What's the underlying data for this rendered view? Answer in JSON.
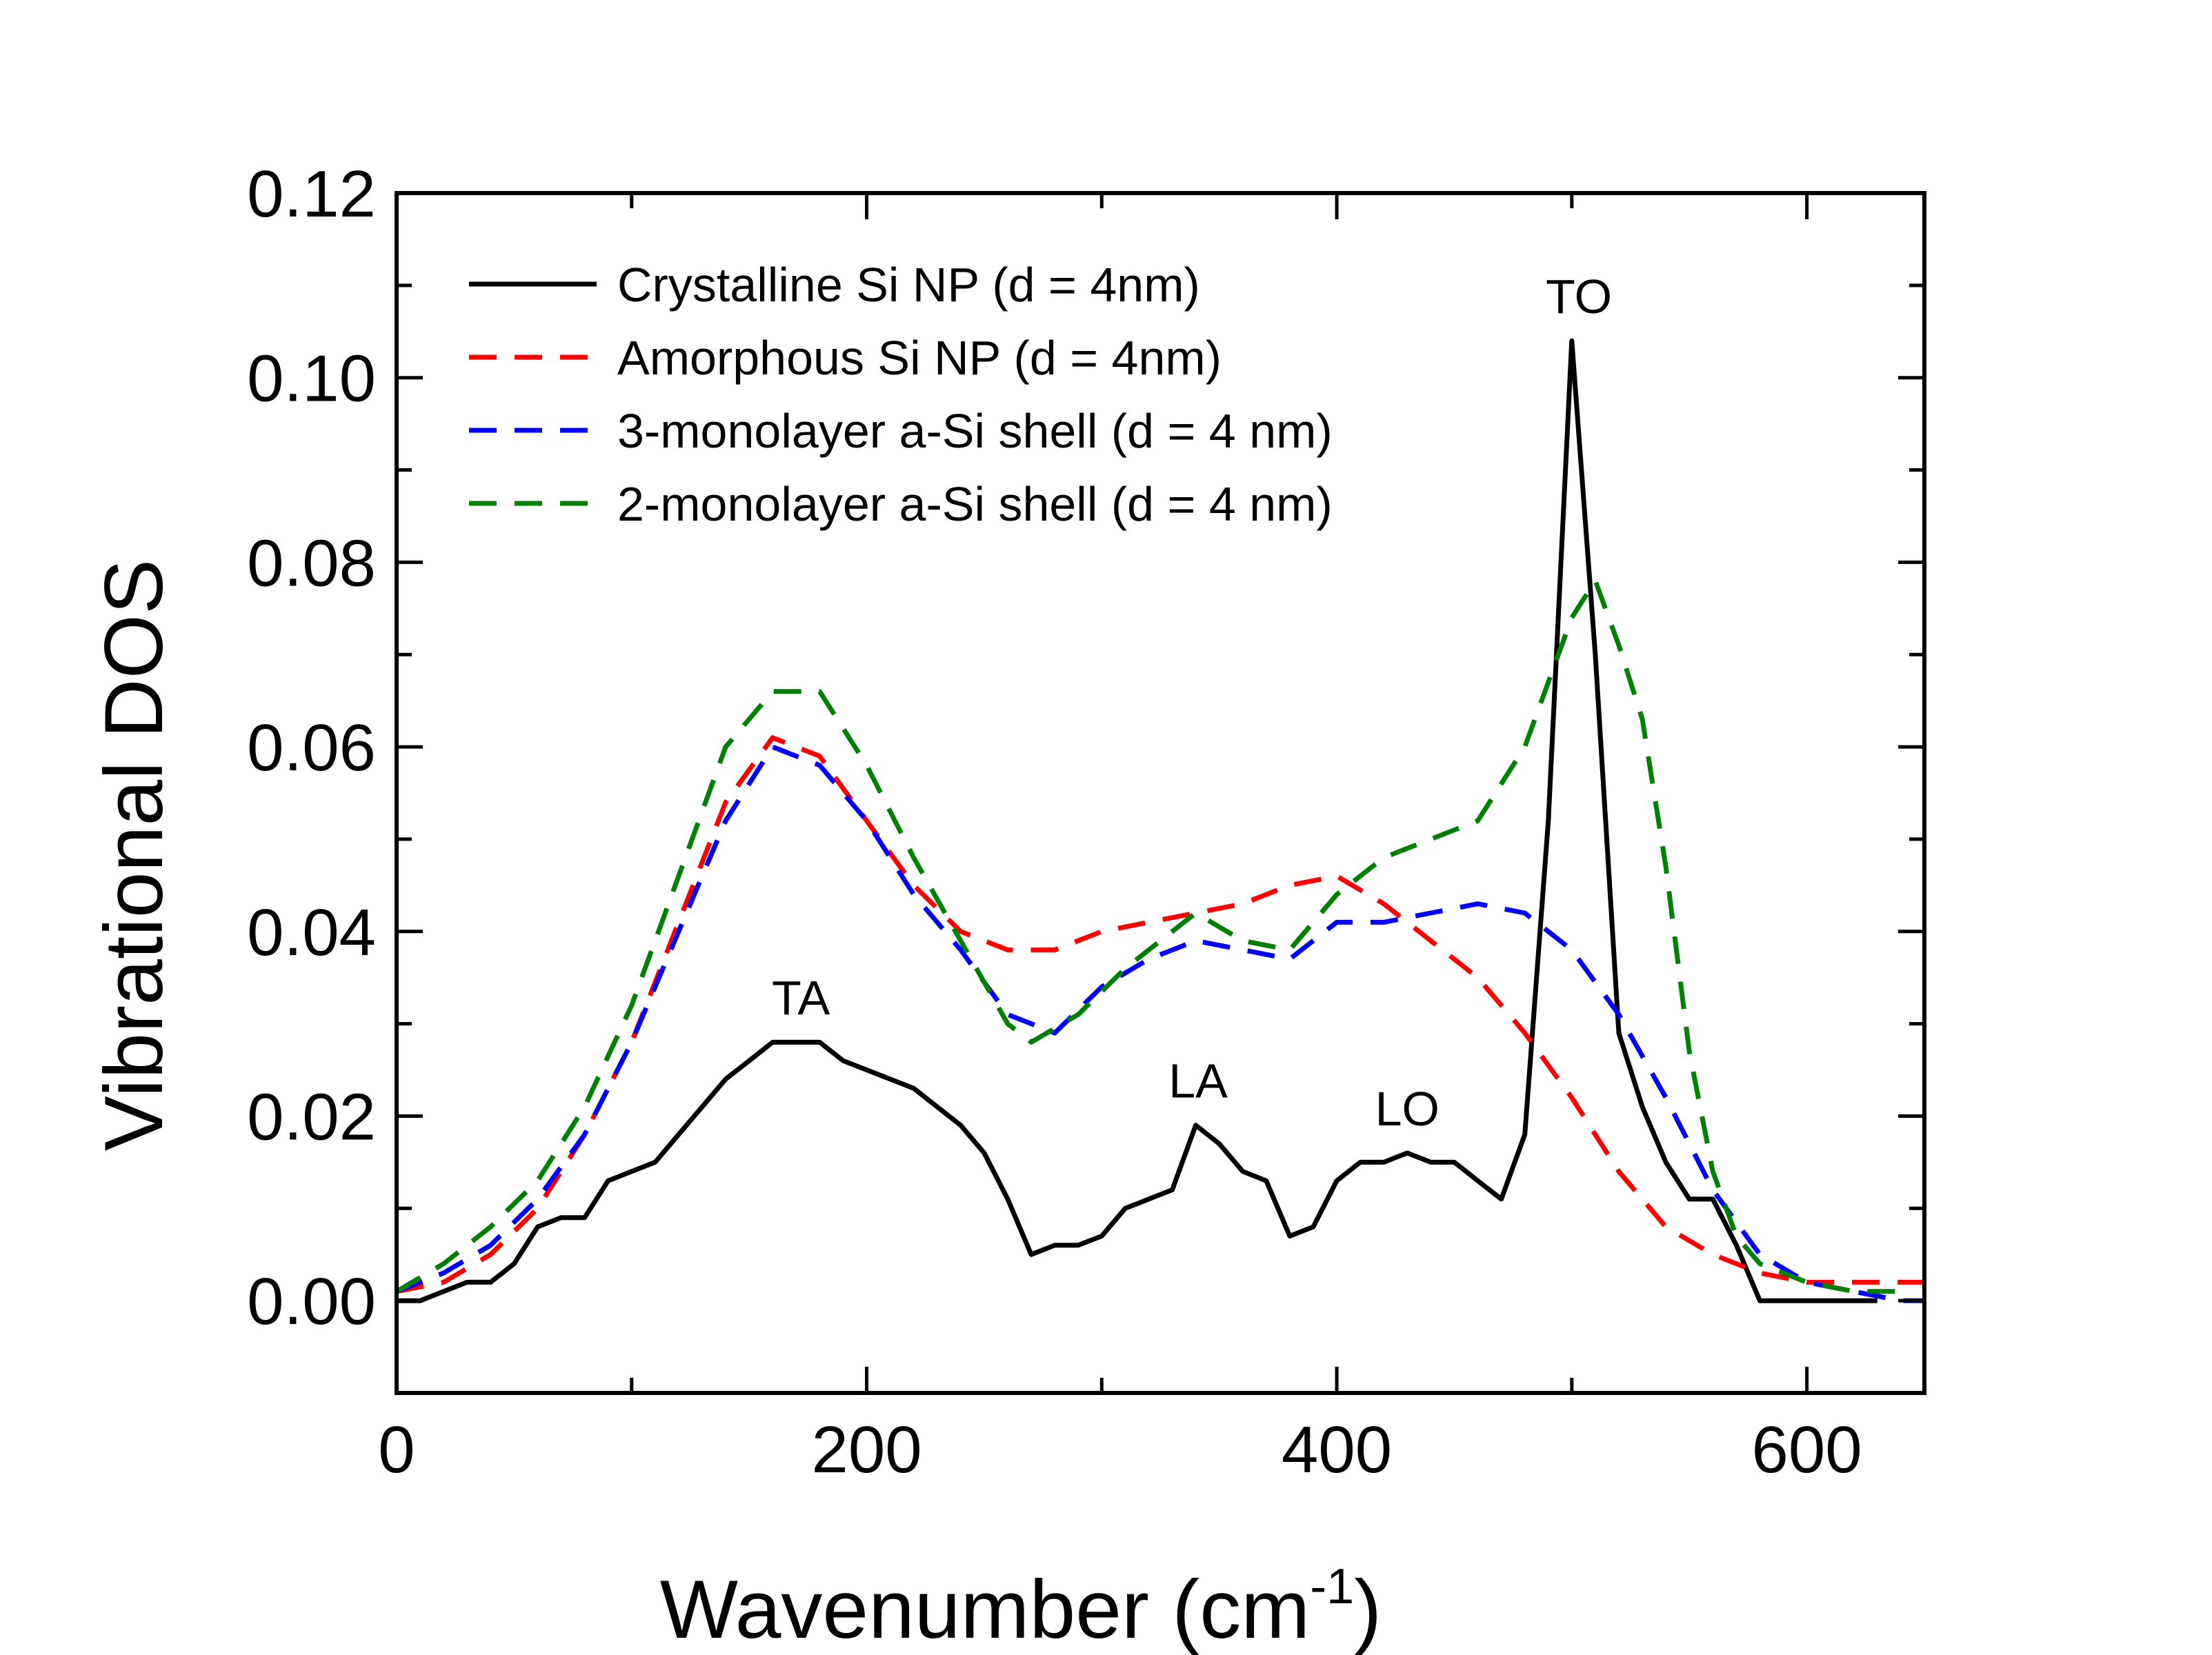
{
  "chart_data": {
    "type": "line",
    "title": "",
    "xlabel": "Wavenumber (cm",
    "xlabel_sup": "-1",
    "xlabel_end": ")",
    "ylabel": "Vibrational DOS",
    "xlim": [
      0,
      650
    ],
    "ylim": [
      -0.01,
      0.12
    ],
    "xticks": [
      0,
      200,
      400,
      600
    ],
    "xtick_labels": [
      "0",
      "200",
      "400",
      "600"
    ],
    "yticks": [
      0.0,
      0.02,
      0.04,
      0.06,
      0.08,
      0.1,
      0.12
    ],
    "ytick_labels": [
      "0.00",
      "0.02",
      "0.04",
      "0.06",
      "0.08",
      "0.10",
      "0.12"
    ],
    "grid": false,
    "legend_position": "top-left",
    "series": [
      {
        "name": "Crystalline Si NP (d = 4nm)",
        "color": "#000000",
        "dash": "solid",
        "x": [
          0,
          10,
          20,
          30,
          40,
          50,
          60,
          70,
          80,
          90,
          100,
          110,
          120,
          130,
          140,
          150,
          160,
          170,
          180,
          190,
          200,
          210,
          220,
          230,
          240,
          250,
          260,
          270,
          280,
          290,
          300,
          310,
          320,
          330,
          340,
          350,
          360,
          370,
          380,
          390,
          400,
          410,
          420,
          430,
          440,
          450,
          460,
          470,
          480,
          490,
          500,
          510,
          520,
          530,
          540,
          550,
          560,
          570,
          580,
          590,
          600,
          610,
          620,
          630
        ],
        "y": [
          0.0,
          0.0,
          0.001,
          0.002,
          0.002,
          0.004,
          0.008,
          0.009,
          0.009,
          0.013,
          0.014,
          0.015,
          0.018,
          0.021,
          0.024,
          0.026,
          0.028,
          0.028,
          0.028,
          0.026,
          0.025,
          0.024,
          0.023,
          0.021,
          0.019,
          0.016,
          0.011,
          0.005,
          0.006,
          0.006,
          0.007,
          0.01,
          0.011,
          0.012,
          0.019,
          0.017,
          0.014,
          0.013,
          0.007,
          0.008,
          0.013,
          0.015,
          0.015,
          0.016,
          0.015,
          0.015,
          0.013,
          0.011,
          0.018,
          0.052,
          0.104,
          0.07,
          0.029,
          0.021,
          0.015,
          0.011,
          0.011,
          0.006,
          0.0,
          0.0,
          0.0,
          0.0,
          0.0,
          0.0
        ]
      },
      {
        "name": "Amorphous Si NP (d = 4nm)",
        "color": "#ff0000",
        "dash": "dashed",
        "x": [
          0,
          20,
          40,
          60,
          80,
          100,
          120,
          140,
          160,
          180,
          200,
          220,
          240,
          260,
          280,
          300,
          320,
          340,
          360,
          380,
          400,
          420,
          440,
          460,
          480,
          500,
          520,
          540,
          560,
          580,
          600,
          620,
          640,
          650
        ],
        "y": [
          0.001,
          0.002,
          0.005,
          0.01,
          0.018,
          0.028,
          0.041,
          0.054,
          0.061,
          0.059,
          0.052,
          0.045,
          0.04,
          0.038,
          0.038,
          0.04,
          0.041,
          0.042,
          0.043,
          0.045,
          0.046,
          0.043,
          0.039,
          0.035,
          0.029,
          0.022,
          0.014,
          0.008,
          0.005,
          0.003,
          0.002,
          0.002,
          0.002,
          0.002
        ]
      },
      {
        "name": "3-monolayer a-Si shell (d = 4 nm)",
        "color": "#0000ff",
        "dash": "dashed",
        "x": [
          0,
          20,
          40,
          60,
          80,
          100,
          120,
          140,
          160,
          180,
          200,
          220,
          240,
          260,
          280,
          300,
          320,
          340,
          360,
          380,
          400,
          420,
          440,
          460,
          480,
          500,
          520,
          540,
          560,
          580,
          600,
          620,
          640,
          650
        ],
        "y": [
          0.001,
          0.003,
          0.006,
          0.011,
          0.018,
          0.028,
          0.04,
          0.052,
          0.06,
          0.058,
          0.052,
          0.044,
          0.038,
          0.031,
          0.029,
          0.034,
          0.037,
          0.039,
          0.038,
          0.037,
          0.041,
          0.041,
          0.042,
          0.043,
          0.042,
          0.038,
          0.031,
          0.022,
          0.012,
          0.005,
          0.002,
          0.001,
          0.0,
          0.0
        ]
      },
      {
        "name": "2-monolayer a-Si shell (d = 4 nm)",
        "color": "#008000",
        "dash": "dashed",
        "x": [
          0,
          20,
          40,
          60,
          80,
          100,
          120,
          140,
          160,
          180,
          200,
          220,
          240,
          260,
          270,
          290,
          310,
          330,
          340,
          360,
          380,
          400,
          420,
          440,
          460,
          480,
          500,
          510,
          520,
          530,
          540,
          550,
          560,
          570,
          580,
          600,
          620,
          640
        ],
        "y": [
          0.001,
          0.004,
          0.008,
          0.013,
          0.021,
          0.032,
          0.046,
          0.06,
          0.066,
          0.066,
          0.058,
          0.048,
          0.039,
          0.03,
          0.028,
          0.031,
          0.036,
          0.04,
          0.042,
          0.039,
          0.038,
          0.044,
          0.048,
          0.05,
          0.052,
          0.06,
          0.074,
          0.078,
          0.071,
          0.063,
          0.047,
          0.027,
          0.014,
          0.007,
          0.004,
          0.002,
          0.001,
          0.001
        ]
      }
    ],
    "annotations": [
      {
        "text": "TA",
        "x": 172,
        "y": 0.031
      },
      {
        "text": "LA",
        "x": 341,
        "y": 0.022
      },
      {
        "text": "LO",
        "x": 430,
        "y": 0.019
      },
      {
        "text": "TO",
        "x": 503,
        "y": 0.107
      }
    ]
  }
}
